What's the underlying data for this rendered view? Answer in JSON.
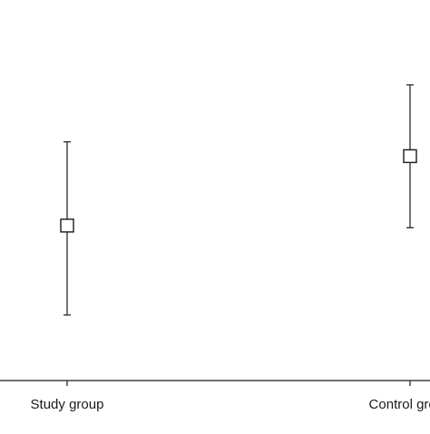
{
  "chart_data": {
    "type": "scatter",
    "style": "point-with-error-bars",
    "marker": "open-square",
    "categories": [
      "Study group",
      "Control group"
    ],
    "points": [
      {
        "category": "Study group",
        "value": 0.433,
        "upper": 0.667,
        "lower": 0.183
      },
      {
        "category": "Control group",
        "value": 0.627,
        "upper": 0.826,
        "lower": 0.427
      }
    ],
    "title": "",
    "xlabel": "",
    "ylabel": "",
    "ylim": [
      0,
      1
    ],
    "grid": false,
    "legend": "none",
    "colors": {
      "line": "#1a1a1a",
      "marker_fill": "#ffffff",
      "background": "#ffffff"
    }
  }
}
